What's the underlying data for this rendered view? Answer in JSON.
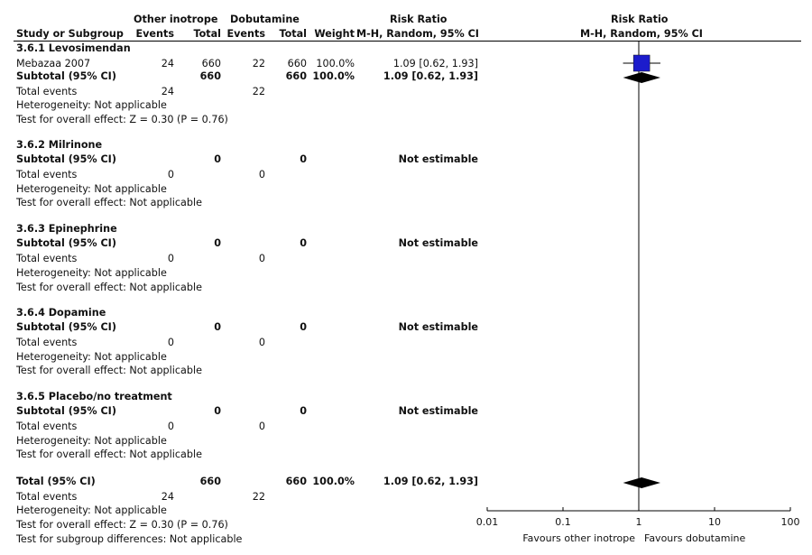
{
  "headers": {
    "group1": "Other inotrope",
    "group2": "Dobutamine",
    "rr_left_1": "Risk Ratio",
    "rr_left_2": "M-H, Random, 95% CI",
    "rr_right_1": "Risk Ratio",
    "rr_right_2": "M-H, Random, 95% CI",
    "study": "Study or Subgroup",
    "events1": "Events",
    "total1": "Total",
    "events2": "Events",
    "total2": "Total",
    "weight": "Weight"
  },
  "subgroups": [
    {
      "title": "3.6.1 Levosimendan",
      "studies": [
        {
          "name": "Mebazaa 2007",
          "e1": "24",
          "t1": "660",
          "e2": "22",
          "t2": "660",
          "weight": "100.0%",
          "ci": "1.09 [0.62, 1.93]"
        }
      ],
      "subtotal": {
        "label": "Subtotal (95% CI)",
        "t1": "660",
        "t2": "660",
        "weight": "100.0%",
        "ci": "1.09 [0.62, 1.93]"
      },
      "total_events": {
        "label": "Total events",
        "e1": "24",
        "e2": "22"
      },
      "heterogeneity": "Heterogeneity: Not applicable",
      "overall": "Test for overall effect: Z = 0.30 (P = 0.76)"
    },
    {
      "title": "3.6.2 Milrinone",
      "studies": [],
      "subtotal": {
        "label": "Subtotal (95% CI)",
        "t1": "0",
        "t2": "0",
        "weight": "",
        "ci": "Not estimable"
      },
      "total_events": {
        "label": "Total events",
        "e1": "0",
        "e2": "0"
      },
      "heterogeneity": "Heterogeneity: Not applicable",
      "overall": "Test for overall effect: Not applicable"
    },
    {
      "title": "3.6.3 Epinephrine",
      "studies": [],
      "subtotal": {
        "label": "Subtotal (95% CI)",
        "t1": "0",
        "t2": "0",
        "weight": "",
        "ci": "Not estimable"
      },
      "total_events": {
        "label": "Total events",
        "e1": "0",
        "e2": "0"
      },
      "heterogeneity": "Heterogeneity: Not applicable",
      "overall": "Test for overall effect: Not applicable"
    },
    {
      "title": "3.6.4 Dopamine",
      "studies": [],
      "subtotal": {
        "label": "Subtotal (95% CI)",
        "t1": "0",
        "t2": "0",
        "weight": "",
        "ci": "Not estimable"
      },
      "total_events": {
        "label": "Total events",
        "e1": "0",
        "e2": "0"
      },
      "heterogeneity": "Heterogeneity: Not applicable",
      "overall": "Test for overall effect: Not applicable"
    },
    {
      "title": "3.6.5 Placebo/no treatment",
      "studies": [],
      "subtotal": {
        "label": "Subtotal (95% CI)",
        "t1": "0",
        "t2": "0",
        "weight": "",
        "ci": "Not estimable"
      },
      "total_events": {
        "label": "Total events",
        "e1": "0",
        "e2": "0"
      },
      "heterogeneity": "Heterogeneity: Not applicable",
      "overall": "Test for overall effect: Not applicable"
    }
  ],
  "total": {
    "label": "Total (95% CI)",
    "t1": "660",
    "t2": "660",
    "weight": "100.0%",
    "ci": "1.09 [0.62, 1.93]",
    "events_label": "Total events",
    "e1": "24",
    "e2": "22",
    "heterogeneity": "Heterogeneity: Not applicable",
    "overall": "Test for overall effect: Z = 0.30 (P = 0.76)",
    "subgroup_diff": "Test for subgroup differences: Not applicable"
  },
  "chart_data": {
    "type": "forest",
    "scale": "log",
    "xlim": [
      0.01,
      100
    ],
    "null_line": 1,
    "ticks": [
      0.01,
      0.1,
      1,
      10,
      100
    ],
    "tick_labels": [
      "0.01",
      "0.1",
      "1",
      "10",
      "100"
    ],
    "favours_left": "Favours other inotrope",
    "favours_right": "Favours dobutamine",
    "studies": [
      {
        "name": "Mebazaa 2007",
        "rr": 1.09,
        "lower": 0.62,
        "upper": 1.93,
        "weight": 100.0
      }
    ],
    "diamonds": [
      {
        "name": "Subtotal (95% CI)",
        "rr": 1.09,
        "lower": 0.62,
        "upper": 1.93
      },
      {
        "name": "Total (95% CI)",
        "rr": 1.09,
        "lower": 0.62,
        "upper": 1.93
      }
    ],
    "colors": {
      "square": "#1c1ccc",
      "diamond": "#000000",
      "line": "#000000"
    }
  }
}
